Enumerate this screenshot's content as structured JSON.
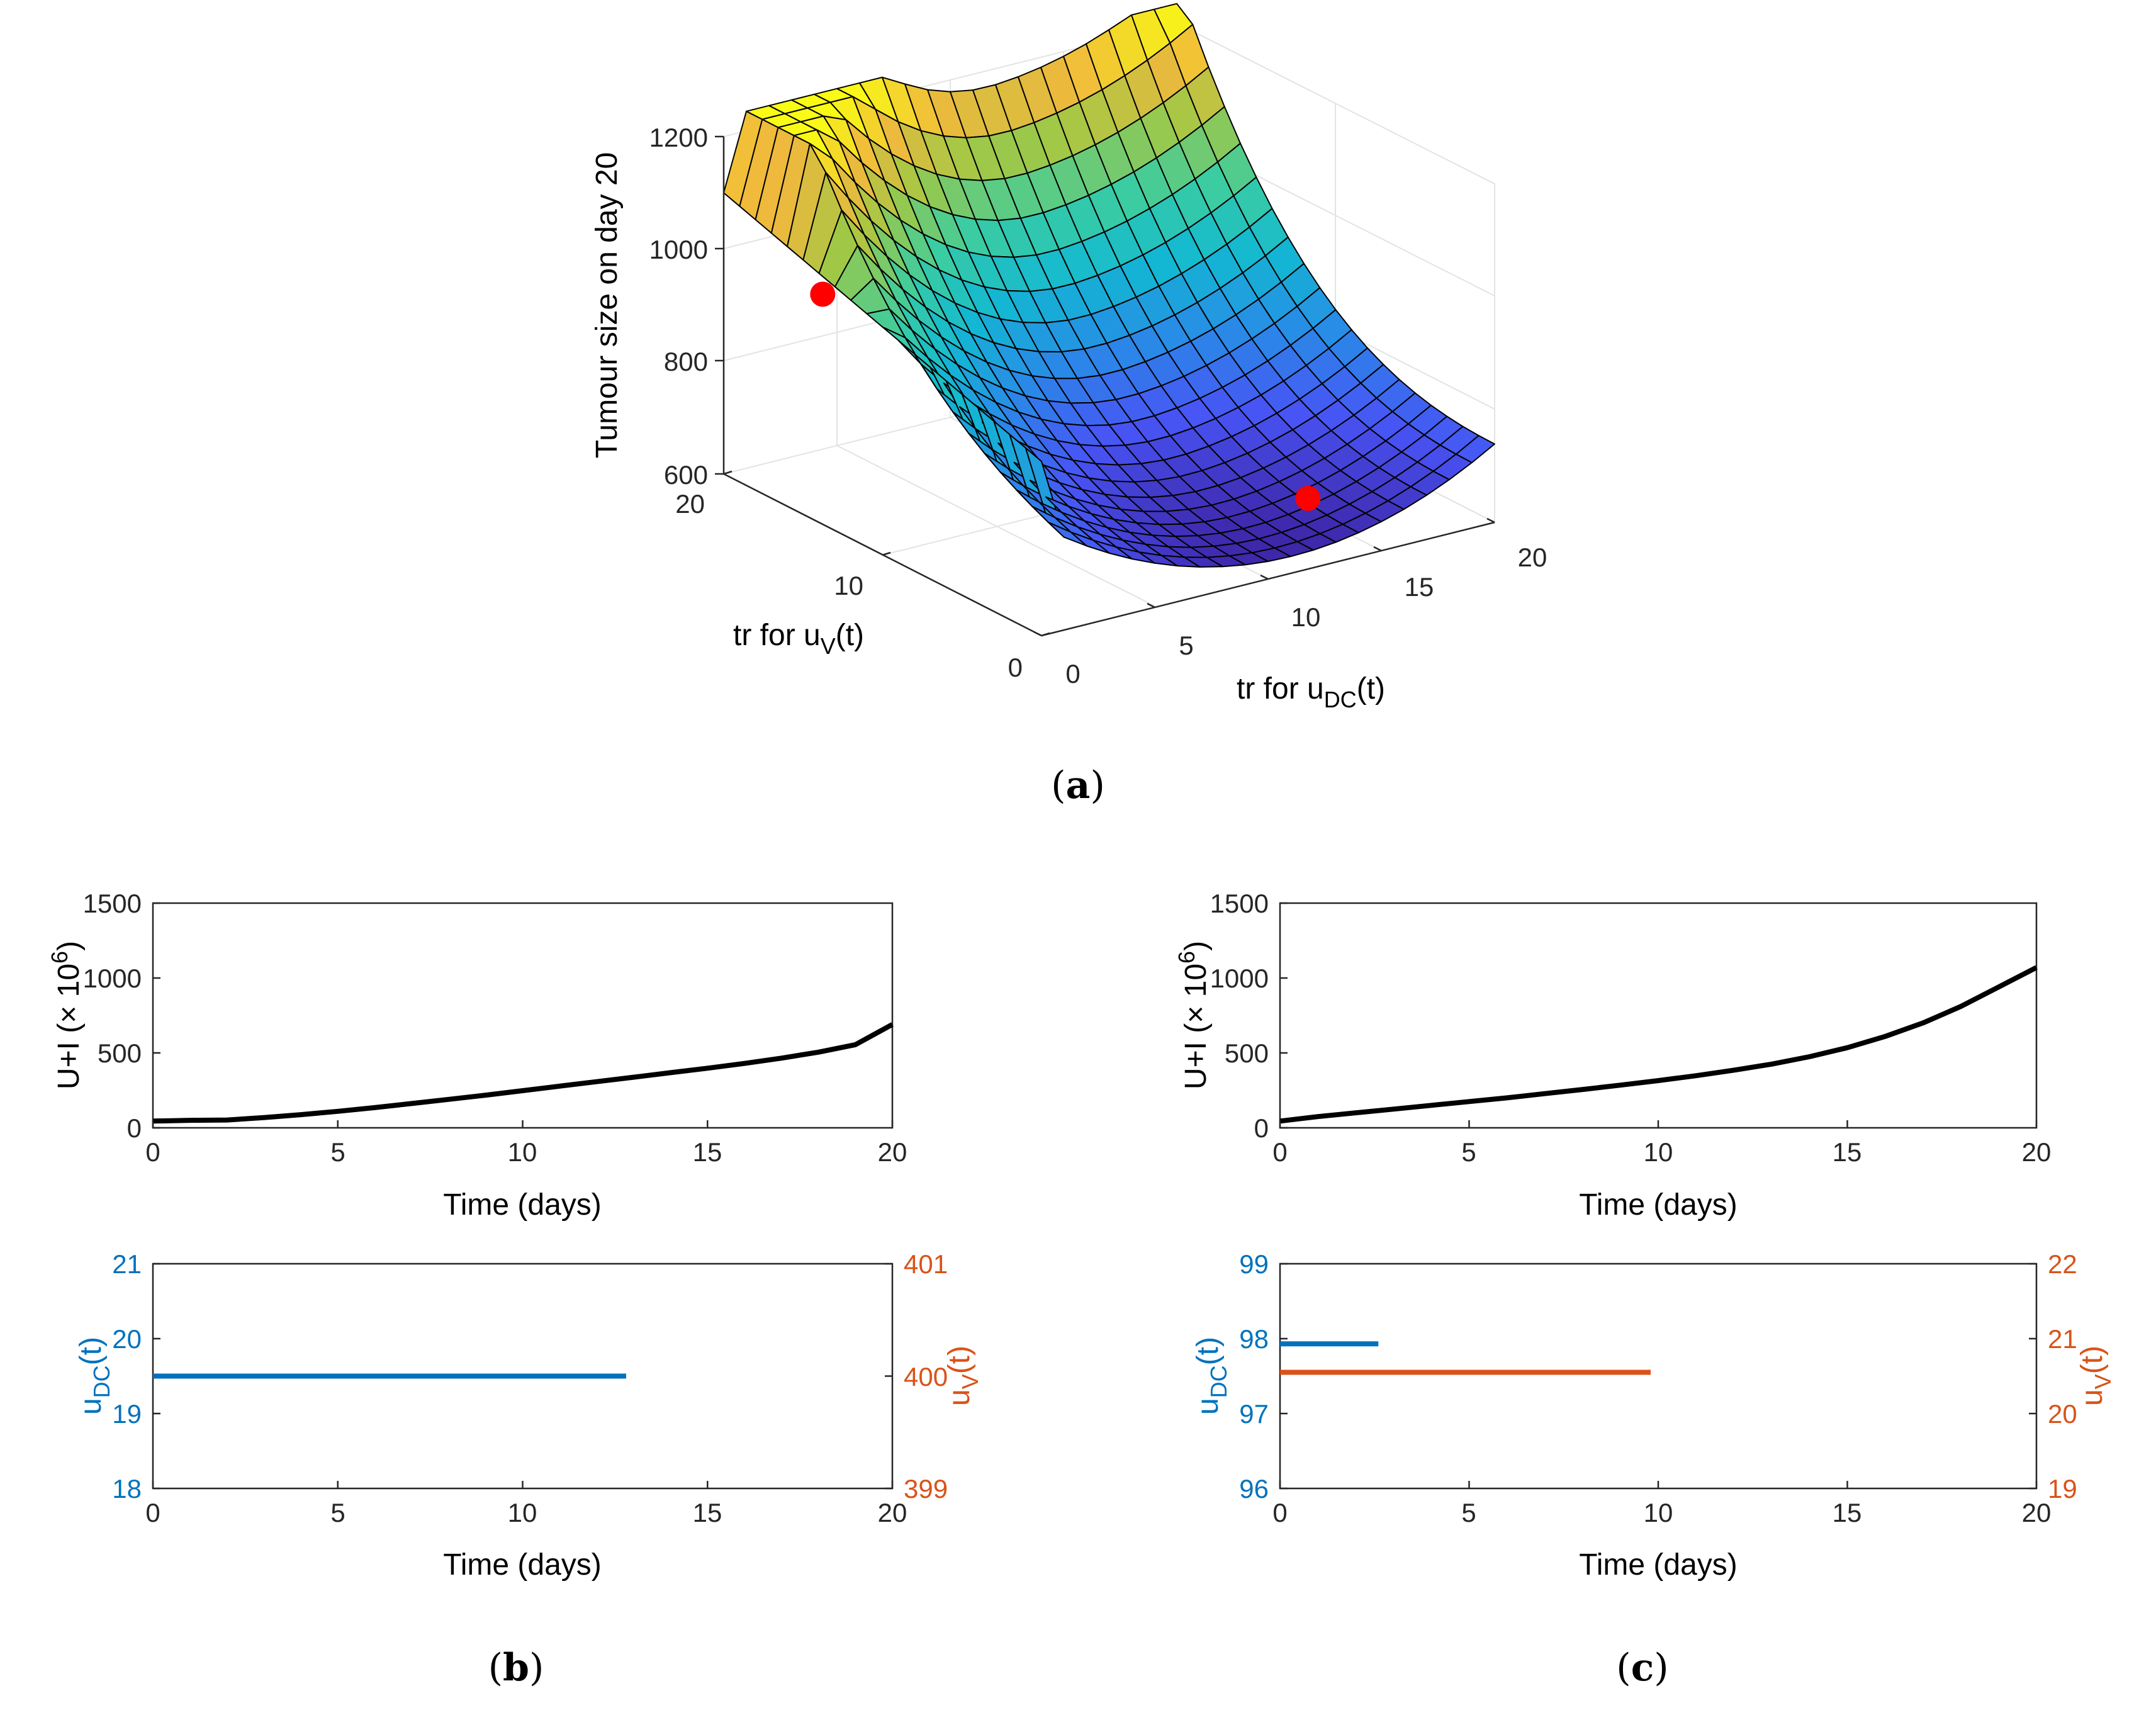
{
  "chart_data": [
    {
      "id": "a",
      "type": "surface3d",
      "caption_letter": "a",
      "zlabel": "Tumour size on day 20",
      "xlabel_prefix": "tr for u",
      "xlabel_sub": "DC",
      "xlabel_suffix": "(t)",
      "ylabel_prefix": "tr for u",
      "ylabel_sub": "V",
      "ylabel_suffix": "(t)",
      "x_ticks": [
        "0",
        "5",
        "10",
        "15",
        "20"
      ],
      "y_ticks": [
        "0",
        "10",
        "20"
      ],
      "z_ticks": [
        "600",
        "800",
        "1000",
        "1200"
      ],
      "xlim": [
        0,
        20
      ],
      "ylim": [
        0,
        20
      ],
      "zlim": [
        600,
        1200
      ],
      "highlight_points": [
        {
          "x": 0.3,
          "y": 14.2,
          "z": 1000
        },
        {
          "x": 12.6,
          "y": 1.2,
          "z": 700
        }
      ],
      "colors": {
        "marker": "#ff0000"
      }
    },
    {
      "id": "b-top",
      "type": "line",
      "caption_letter": "b",
      "ylabel_text": "U+I (× 10",
      "ylabel_sup": "6",
      "ylabel_end": ")",
      "xlabel": "Time (days)",
      "xlim": [
        0,
        20
      ],
      "ylim": [
        0,
        1500
      ],
      "x_ticks": [
        "0",
        "5",
        "10",
        "15",
        "20"
      ],
      "y_ticks": [
        "0",
        "500",
        "1000",
        "1500"
      ],
      "series": [
        {
          "name": "U+I",
          "color": "#000000",
          "x": [
            0,
            1,
            2,
            3,
            4,
            5,
            6,
            7,
            8,
            9,
            10,
            11,
            12,
            13,
            14,
            15,
            16,
            17,
            18,
            19,
            20
          ],
          "y": [
            45,
            50,
            52,
            68,
            88,
            110,
            135,
            162,
            190,
            218,
            248,
            278,
            308,
            338,
            368,
            398,
            430,
            465,
            505,
            555,
            690
          ]
        }
      ]
    },
    {
      "id": "b-bottom",
      "type": "line",
      "xlabel": "Time (days)",
      "ylabel_left_prefix": "u",
      "ylabel_left_sub": "DC",
      "ylabel_left_suffix": "(t)",
      "ylabel_right_prefix": "u",
      "ylabel_right_sub": "V",
      "ylabel_right_suffix": "(t)",
      "xlim": [
        0,
        20
      ],
      "ylim_left": [
        18,
        21
      ],
      "ylim_right": [
        399,
        401
      ],
      "x_ticks": [
        "0",
        "5",
        "10",
        "15",
        "20"
      ],
      "y_ticks_left": [
        "18",
        "19",
        "20",
        "21"
      ],
      "y_ticks_right": [
        "399",
        "400",
        "401"
      ],
      "series": [
        {
          "name": "u_V",
          "axis": "right",
          "color": "#D95319",
          "x": [
            0,
            0.5
          ],
          "y": [
            400,
            400
          ]
        },
        {
          "name": "u_DC",
          "axis": "left",
          "color": "#0072BD",
          "x": [
            0,
            12.8
          ],
          "y": [
            19.5,
            19.5
          ]
        }
      ]
    },
    {
      "id": "c-top",
      "type": "line",
      "caption_letter": "c",
      "ylabel_text": "U+I (× 10",
      "ylabel_sup": "6",
      "ylabel_end": ")",
      "xlabel": "Time (days)",
      "xlim": [
        0,
        20
      ],
      "ylim": [
        0,
        1500
      ],
      "x_ticks": [
        "0",
        "5",
        "10",
        "15",
        "20"
      ],
      "y_ticks": [
        "0",
        "500",
        "1000",
        "1500"
      ],
      "series": [
        {
          "name": "U+I",
          "color": "#000000",
          "x": [
            0,
            1,
            2,
            3,
            4,
            5,
            6,
            7,
            8,
            9,
            10,
            11,
            12,
            13,
            14,
            15,
            16,
            17,
            18,
            19,
            20
          ],
          "y": [
            45,
            75,
            100,
            125,
            150,
            175,
            200,
            228,
            256,
            285,
            315,
            348,
            385,
            425,
            475,
            535,
            610,
            700,
            810,
            940,
            1070
          ]
        }
      ]
    },
    {
      "id": "c-bottom",
      "type": "line",
      "xlabel": "Time (days)",
      "ylabel_left_prefix": "u",
      "ylabel_left_sub": "DC",
      "ylabel_left_suffix": "(t)",
      "ylabel_right_prefix": "u",
      "ylabel_right_sub": "V",
      "ylabel_right_suffix": "(t)",
      "xlim": [
        0,
        20
      ],
      "ylim_left": [
        96,
        99
      ],
      "ylim_right": [
        19,
        22
      ],
      "x_ticks": [
        "0",
        "5",
        "10",
        "15",
        "20"
      ],
      "y_ticks_left": [
        "96",
        "97",
        "98",
        "99"
      ],
      "y_ticks_right": [
        "19",
        "20",
        "21",
        "22"
      ],
      "series": [
        {
          "name": "u_DC",
          "axis": "left",
          "color": "#0072BD",
          "x": [
            0,
            2.6
          ],
          "y": [
            97.93,
            97.93
          ]
        },
        {
          "name": "u_V",
          "axis": "right",
          "color": "#D95319",
          "x": [
            0,
            9.8
          ],
          "y": [
            20.55,
            20.55
          ]
        }
      ]
    }
  ]
}
